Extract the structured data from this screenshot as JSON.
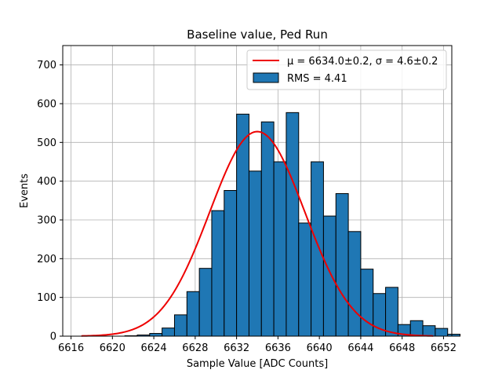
{
  "chart_data": {
    "type": "bar",
    "title": "Baseline value, Ped Run",
    "xlabel": "Sample Value [ADC Counts]",
    "ylabel": "Events",
    "xlim": [
      6615.2,
      6652.8
    ],
    "ylim": [
      0,
      750
    ],
    "xticks": [
      6616,
      6620,
      6624,
      6628,
      6632,
      6636,
      6640,
      6644,
      6648,
      6652
    ],
    "yticks": [
      0,
      100,
      200,
      300,
      400,
      500,
      600,
      700
    ],
    "grid": true,
    "legend_position": "top-right",
    "bin_width": 1.2,
    "bins": [
      {
        "x": 6621.8,
        "y": 1
      },
      {
        "x": 6623.0,
        "y": 3
      },
      {
        "x": 6624.2,
        "y": 7
      },
      {
        "x": 6625.4,
        "y": 21
      },
      {
        "x": 6626.6,
        "y": 55
      },
      {
        "x": 6627.8,
        "y": 115
      },
      {
        "x": 6629.0,
        "y": 175
      },
      {
        "x": 6630.2,
        "y": 324
      },
      {
        "x": 6631.4,
        "y": 376
      },
      {
        "x": 6632.6,
        "y": 573
      },
      {
        "x": 6633.8,
        "y": 426
      },
      {
        "x": 6635.0,
        "y": 553
      },
      {
        "x": 6636.2,
        "y": 450
      },
      {
        "x": 6637.4,
        "y": 577
      },
      {
        "x": 6638.6,
        "y": 292
      },
      {
        "x": 6639.8,
        "y": 450
      },
      {
        "x": 6641.0,
        "y": 310
      },
      {
        "x": 6642.2,
        "y": 368
      },
      {
        "x": 6643.4,
        "y": 270
      },
      {
        "x": 6644.6,
        "y": 173
      },
      {
        "x": 6645.8,
        "y": 110
      },
      {
        "x": 6647.0,
        "y": 126
      },
      {
        "x": 6648.2,
        "y": 30
      },
      {
        "x": 6649.4,
        "y": 40
      },
      {
        "x": 6650.6,
        "y": 27
      },
      {
        "x": 6651.8,
        "y": 20
      },
      {
        "x": 6653.0,
        "y": 5
      }
    ],
    "fit": {
      "mu": 6634.0,
      "sigma": 4.6,
      "amplitude": 528,
      "x_range": [
        6617,
        6651
      ]
    },
    "series": [
      {
        "name": "μ = 6634.0±0.2, σ = 4.6±0.2",
        "kind": "fit-line",
        "color": "#ee0000"
      },
      {
        "name": "RMS = 4.41",
        "kind": "histogram",
        "color": "#1f77b4"
      }
    ]
  }
}
